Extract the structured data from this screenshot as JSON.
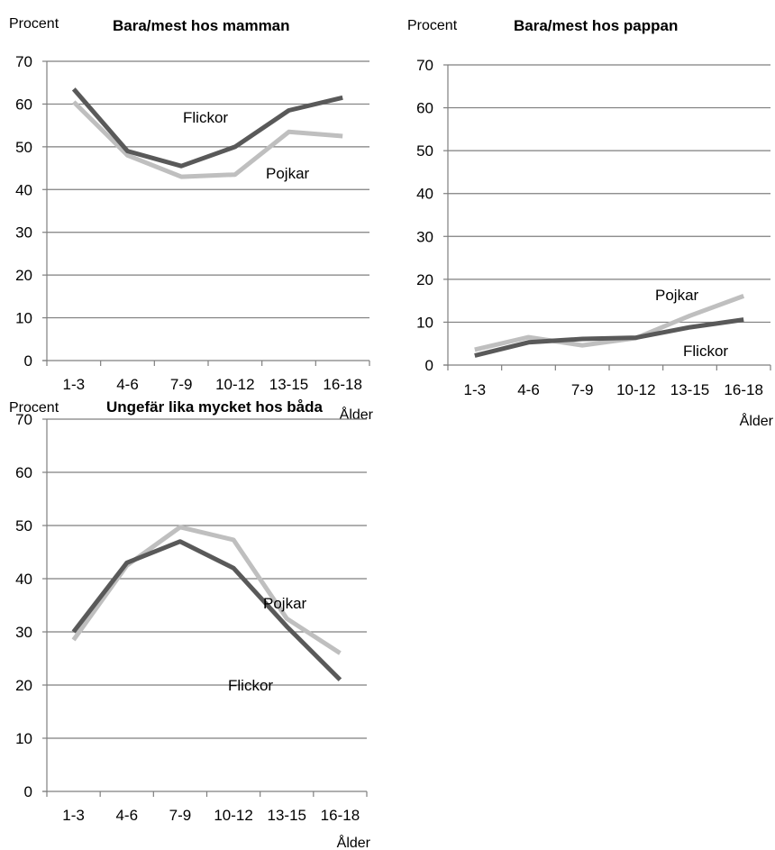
{
  "chart_data": [
    {
      "type": "line",
      "title": "Bara/mest hos mamman",
      "ylabel": "Procent",
      "xlabel": "Ålder",
      "ylim": [
        0,
        70
      ],
      "yticks": [
        0,
        10,
        20,
        30,
        40,
        50,
        60,
        70
      ],
      "categories": [
        "1-3",
        "4-6",
        "7-9",
        "10-12",
        "13-15",
        "16-18"
      ],
      "grid": true,
      "series": [
        {
          "name": "Flickor",
          "color": "#595959",
          "values": [
            63.5,
            49,
            45.5,
            50,
            58.5,
            61.5
          ]
        },
        {
          "name": "Pojkar",
          "color": "#bfbfbf",
          "values": [
            60.5,
            48,
            43,
            43.5,
            53.5,
            52.5
          ]
        }
      ]
    },
    {
      "type": "line",
      "title": "Bara/mest hos pappan",
      "ylabel": "Procent",
      "xlabel": "Ålder",
      "ylim": [
        0,
        70
      ],
      "yticks": [
        0,
        10,
        20,
        30,
        40,
        50,
        60,
        70
      ],
      "categories": [
        "1-3",
        "4-6",
        "7-9",
        "10-12",
        "13-15",
        "16-18"
      ],
      "grid": true,
      "series": [
        {
          "name": "Flickor",
          "color": "#595959",
          "values": [
            2.2,
            5.3,
            6.1,
            6.4,
            8.8,
            10.6
          ]
        },
        {
          "name": "Pojkar",
          "color": "#bfbfbf",
          "values": [
            3.6,
            6.5,
            4.6,
            6.3,
            11.5,
            16.1
          ]
        }
      ]
    },
    {
      "type": "line",
      "title": "Ungefär lika mycket hos båda",
      "ylabel": "Procent",
      "xlabel": "Ålder",
      "ylim": [
        0,
        70
      ],
      "yticks": [
        0,
        10,
        20,
        30,
        40,
        50,
        60,
        70
      ],
      "categories": [
        "1-3",
        "4-6",
        "7-9",
        "10-12",
        "13-15",
        "16-18"
      ],
      "grid": true,
      "series": [
        {
          "name": "Flickor",
          "color": "#595959",
          "values": [
            30,
            43,
            47,
            42,
            31,
            21
          ]
        },
        {
          "name": "Pojkar",
          "color": "#bfbfbf",
          "values": [
            28.5,
            42.5,
            49.7,
            47.3,
            32.5,
            26
          ]
        }
      ]
    }
  ]
}
